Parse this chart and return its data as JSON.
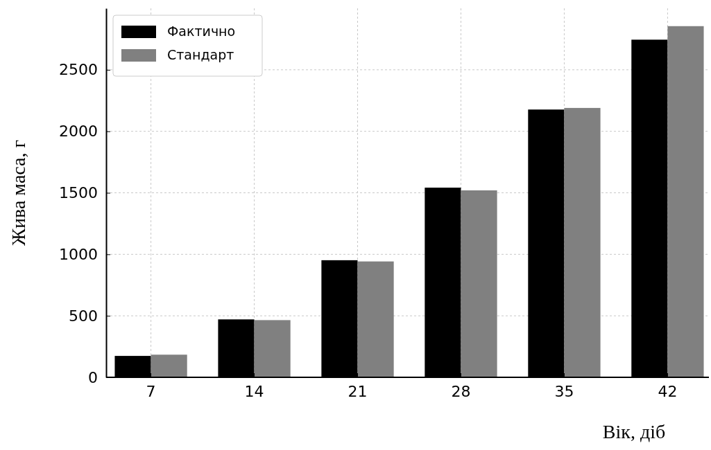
{
  "chart_data": {
    "type": "bar",
    "xlabel": "Вік, діб",
    "ylabel": "Жива маса, г",
    "categories": [
      "7",
      "14",
      "21",
      "28",
      "35",
      "42"
    ],
    "series": [
      {
        "name": "Фактично",
        "color": "#000000",
        "values": [
          174,
          471,
          952,
          1542,
          2177,
          2745
        ]
      },
      {
        "name": "Стандарт",
        "color": "#808080",
        "values": [
          184,
          465,
          942,
          1520,
          2190,
          2855
        ]
      }
    ],
    "ylim": [
      0,
      3000
    ],
    "yticks": [
      0,
      500,
      1000,
      1500,
      2000,
      2500
    ],
    "grid": true,
    "legend": "top left"
  }
}
